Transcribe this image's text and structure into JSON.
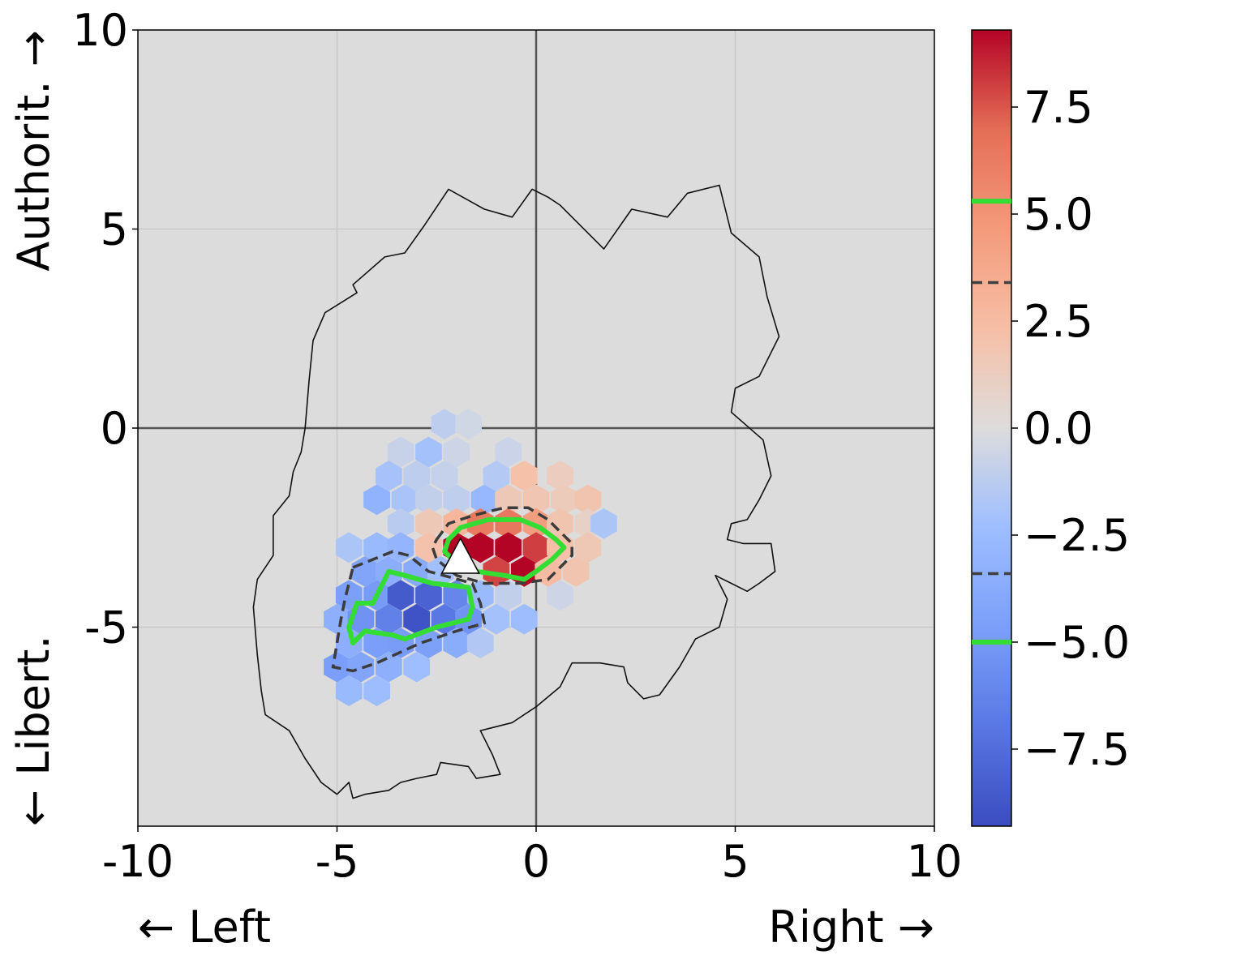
{
  "chart_data": {
    "type": "heatmap",
    "title": "",
    "xlabel_left": "← Left",
    "xlabel_right": "Right →",
    "ylabel_top": "Authorit. →",
    "ylabel_bottom": "← Libert.",
    "xlim": [
      -10,
      10
    ],
    "ylim": [
      -10,
      10
    ],
    "x_ticks": [
      {
        "value": -10,
        "label": "-10"
      },
      {
        "value": -5,
        "label": "-5"
      },
      {
        "value": 0,
        "label": "0"
      },
      {
        "value": 5,
        "label": "5"
      },
      {
        "value": 10,
        "label": "10"
      }
    ],
    "y_ticks": [
      {
        "value": 10,
        "label": "10"
      },
      {
        "value": 5,
        "label": "5"
      },
      {
        "value": 0,
        "label": "0"
      },
      {
        "value": -5,
        "label": "-5"
      }
    ],
    "grid": true,
    "background_color": "#dcdcdc",
    "colormap": "coolwarm",
    "colorbar": {
      "range": [
        -9.3,
        9.3
      ],
      "ticks": [
        {
          "value": 7.5,
          "label": "7.5"
        },
        {
          "value": 5.0,
          "label": "5.0"
        },
        {
          "value": 2.5,
          "label": "2.5"
        },
        {
          "value": 0.0,
          "label": "0.0"
        },
        {
          "value": -2.5,
          "label": "−2.5"
        },
        {
          "value": -5.0,
          "label": "−5.0"
        },
        {
          "value": -7.5,
          "label": "−7.5"
        }
      ],
      "contour_levels": [
        {
          "value": 5.3,
          "style": "solid",
          "color": "#33dd33"
        },
        {
          "value": 3.4,
          "style": "dashed",
          "color": "#404040"
        },
        {
          "value": -3.4,
          "style": "dashed",
          "color": "#404040"
        },
        {
          "value": -5.0,
          "style": "solid",
          "color": "#33dd33"
        }
      ]
    },
    "hex_size": 0.385,
    "hexbins": [
      {
        "x": -2.3,
        "y": 0.1,
        "v": -1.2
      },
      {
        "x": -1.7,
        "y": 0.1,
        "v": -0.5
      },
      {
        "x": -3.4,
        "y": -0.6,
        "v": -0.8
      },
      {
        "x": -2.7,
        "y": -0.6,
        "v": -2.1
      },
      {
        "x": -2.0,
        "y": -0.6,
        "v": -0.6
      },
      {
        "x": -0.7,
        "y": -0.6,
        "v": -0.7
      },
      {
        "x": -3.7,
        "y": -1.2,
        "v": -2.0
      },
      {
        "x": -3.0,
        "y": -1.2,
        "v": -1.2
      },
      {
        "x": -2.3,
        "y": -1.2,
        "v": -0.9
      },
      {
        "x": -1.0,
        "y": -1.2,
        "v": -1.5
      },
      {
        "x": -0.3,
        "y": -1.2,
        "v": 2.2
      },
      {
        "x": 0.6,
        "y": -1.2,
        "v": 1.3
      },
      {
        "x": -4.0,
        "y": -1.8,
        "v": -3.2
      },
      {
        "x": -3.3,
        "y": -1.8,
        "v": -1.9
      },
      {
        "x": -2.7,
        "y": -1.8,
        "v": -1.0
      },
      {
        "x": -2.0,
        "y": -1.8,
        "v": -1.1
      },
      {
        "x": -1.3,
        "y": -1.8,
        "v": -2.8
      },
      {
        "x": -0.7,
        "y": -1.8,
        "v": 1.6
      },
      {
        "x": 0.0,
        "y": -1.8,
        "v": 1.8
      },
      {
        "x": 0.7,
        "y": -1.8,
        "v": 1.4
      },
      {
        "x": 1.3,
        "y": -1.8,
        "v": 1.9
      },
      {
        "x": -3.4,
        "y": -2.4,
        "v": -1.3
      },
      {
        "x": -2.7,
        "y": -2.4,
        "v": 1.6
      },
      {
        "x": -2.0,
        "y": -2.4,
        "v": 2.9
      },
      {
        "x": -1.4,
        "y": -2.4,
        "v": 6.3
      },
      {
        "x": -0.7,
        "y": -2.4,
        "v": 6.5
      },
      {
        "x": 0.0,
        "y": -2.4,
        "v": 4.4
      },
      {
        "x": 0.6,
        "y": -2.4,
        "v": 1.9
      },
      {
        "x": 1.3,
        "y": -2.4,
        "v": 0.9
      },
      {
        "x": 1.7,
        "y": -2.4,
        "v": -1.8
      },
      {
        "x": -4.7,
        "y": -3.0,
        "v": -1.8
      },
      {
        "x": -4.0,
        "y": -3.0,
        "v": -2.6
      },
      {
        "x": -3.4,
        "y": -3.0,
        "v": -3.0
      },
      {
        "x": -2.7,
        "y": -3.0,
        "v": 2.1
      },
      {
        "x": -2.0,
        "y": -3.0,
        "v": 9.3
      },
      {
        "x": -1.4,
        "y": -3.0,
        "v": 9.3
      },
      {
        "x": -0.7,
        "y": -3.0,
        "v": 9.3
      },
      {
        "x": 0.0,
        "y": -3.0,
        "v": 8.0
      },
      {
        "x": 0.6,
        "y": -3.0,
        "v": 2.3
      },
      {
        "x": 1.3,
        "y": -3.0,
        "v": 1.7
      },
      {
        "x": -4.3,
        "y": -3.6,
        "v": -4.2
      },
      {
        "x": -3.7,
        "y": -3.6,
        "v": -3.6
      },
      {
        "x": -3.0,
        "y": -3.6,
        "v": -3.8
      },
      {
        "x": -2.4,
        "y": -3.6,
        "v": -2.2
      },
      {
        "x": -1.0,
        "y": -3.6,
        "v": 7.9
      },
      {
        "x": -0.3,
        "y": -3.6,
        "v": 9.3
      },
      {
        "x": 0.3,
        "y": -3.6,
        "v": 2.5
      },
      {
        "x": 1.0,
        "y": -3.6,
        "v": 1.9
      },
      {
        "x": -4.7,
        "y": -4.2,
        "v": -4.6
      },
      {
        "x": -4.0,
        "y": -4.2,
        "v": -4.9
      },
      {
        "x": -3.4,
        "y": -4.2,
        "v": -8.5
      },
      {
        "x": -2.7,
        "y": -4.2,
        "v": -8.1
      },
      {
        "x": -2.0,
        "y": -4.2,
        "v": -6.1
      },
      {
        "x": -1.4,
        "y": -4.2,
        "v": -2.6
      },
      {
        "x": -0.7,
        "y": -4.2,
        "v": -1.0
      },
      {
        "x": 0.6,
        "y": -4.2,
        "v": -0.6
      },
      {
        "x": -5.0,
        "y": -4.8,
        "v": -3.4
      },
      {
        "x": -4.4,
        "y": -4.8,
        "v": -5.4
      },
      {
        "x": -3.7,
        "y": -4.8,
        "v": -6.4
      },
      {
        "x": -3.0,
        "y": -4.8,
        "v": -8.9
      },
      {
        "x": -2.3,
        "y": -4.8,
        "v": -6.9
      },
      {
        "x": -1.7,
        "y": -4.8,
        "v": -5.3
      },
      {
        "x": -1.0,
        "y": -4.8,
        "v": -2.1
      },
      {
        "x": -0.3,
        "y": -4.8,
        "v": -2.4
      },
      {
        "x": -4.7,
        "y": -5.4,
        "v": -3.5
      },
      {
        "x": -4.0,
        "y": -5.4,
        "v": -4.7
      },
      {
        "x": -3.4,
        "y": -5.4,
        "v": -4.8
      },
      {
        "x": -2.7,
        "y": -5.4,
        "v": -4.5
      },
      {
        "x": -2.0,
        "y": -5.4,
        "v": -3.7
      },
      {
        "x": -1.4,
        "y": -5.4,
        "v": -1.6
      },
      {
        "x": -5.0,
        "y": -6.0,
        "v": -4.7
      },
      {
        "x": -4.4,
        "y": -6.0,
        "v": -4.2
      },
      {
        "x": -3.7,
        "y": -6.0,
        "v": -3.4
      },
      {
        "x": -3.0,
        "y": -6.0,
        "v": -2.3
      },
      {
        "x": -4.7,
        "y": -6.6,
        "v": -2.6
      },
      {
        "x": -4.0,
        "y": -6.6,
        "v": -2.4
      }
    ],
    "outline": [
      [
        -5.8,
        0.0
      ],
      [
        -5.7,
        1.2
      ],
      [
        -5.6,
        2.2
      ],
      [
        -5.3,
        2.9
      ],
      [
        -4.5,
        3.4
      ],
      [
        -4.6,
        3.6
      ],
      [
        -3.8,
        4.3
      ],
      [
        -3.3,
        4.4
      ],
      [
        -2.8,
        5.1
      ],
      [
        -2.2,
        6.0
      ],
      [
        -1.3,
        5.5
      ],
      [
        -0.6,
        5.3
      ],
      [
        -0.1,
        6.0
      ],
      [
        0.3,
        5.8
      ],
      [
        0.6,
        5.6
      ],
      [
        1.7,
        4.5
      ],
      [
        2.4,
        5.5
      ],
      [
        3.3,
        5.3
      ],
      [
        3.8,
        5.9
      ],
      [
        4.6,
        6.1
      ],
      [
        4.9,
        4.9
      ],
      [
        5.6,
        4.3
      ],
      [
        5.8,
        3.3
      ],
      [
        6.1,
        2.3
      ],
      [
        5.6,
        1.3
      ],
      [
        5.0,
        1.0
      ],
      [
        4.9,
        0.4
      ],
      [
        5.7,
        -0.3
      ],
      [
        5.9,
        -1.2
      ],
      [
        5.6,
        -1.8
      ],
      [
        5.3,
        -2.3
      ],
      [
        4.9,
        -2.4
      ],
      [
        4.8,
        -2.8
      ],
      [
        5.2,
        -2.9
      ],
      [
        5.9,
        -2.9
      ],
      [
        6.0,
        -3.6
      ],
      [
        5.6,
        -3.9
      ],
      [
        5.3,
        -4.1
      ],
      [
        4.9,
        -3.9
      ],
      [
        4.5,
        -3.7
      ],
      [
        4.8,
        -4.3
      ],
      [
        4.6,
        -5.0
      ],
      [
        4.0,
        -5.3
      ],
      [
        3.6,
        -6.0
      ],
      [
        3.1,
        -6.7
      ],
      [
        2.7,
        -6.8
      ],
      [
        2.3,
        -6.4
      ],
      [
        2.2,
        -6.0
      ],
      [
        1.6,
        -5.9
      ],
      [
        0.9,
        -5.9
      ],
      [
        0.6,
        -6.5
      ],
      [
        0.0,
        -7.0
      ],
      [
        -0.6,
        -7.4
      ],
      [
        -1.4,
        -7.6
      ],
      [
        -1.1,
        -8.2
      ],
      [
        -0.9,
        -8.7
      ],
      [
        -1.5,
        -8.8
      ],
      [
        -1.7,
        -8.5
      ],
      [
        -2.4,
        -8.4
      ],
      [
        -2.5,
        -8.7
      ],
      [
        -3.0,
        -8.8
      ],
      [
        -3.4,
        -8.9
      ],
      [
        -3.7,
        -9.1
      ],
      [
        -4.3,
        -9.2
      ],
      [
        -4.6,
        -9.3
      ],
      [
        -4.7,
        -8.9
      ],
      [
        -5.0,
        -9.2
      ],
      [
        -5.4,
        -8.9
      ],
      [
        -5.8,
        -8.3
      ],
      [
        -6.2,
        -7.6
      ],
      [
        -6.8,
        -7.2
      ],
      [
        -6.9,
        -6.6
      ],
      [
        -7.0,
        -5.7
      ],
      [
        -7.1,
        -4.5
      ],
      [
        -7.0,
        -3.8
      ],
      [
        -6.6,
        -3.2
      ],
      [
        -6.6,
        -2.2
      ],
      [
        -6.2,
        -1.7
      ],
      [
        -6.1,
        -1.1
      ],
      [
        -5.9,
        -0.6
      ]
    ],
    "red_dashed_contour": [
      [
        -2.5,
        -2.8
      ],
      [
        -2.2,
        -2.4
      ],
      [
        -1.6,
        -2.2
      ],
      [
        -0.8,
        -2.0
      ],
      [
        -0.2,
        -2.0
      ],
      [
        0.3,
        -2.3
      ],
      [
        0.6,
        -2.6
      ],
      [
        0.9,
        -2.9
      ],
      [
        0.9,
        -3.2
      ],
      [
        0.6,
        -3.5
      ],
      [
        0.3,
        -3.8
      ],
      [
        -0.4,
        -3.9
      ],
      [
        -1.3,
        -3.9
      ],
      [
        -2.0,
        -3.7
      ],
      [
        -2.5,
        -3.3
      ],
      [
        -2.6,
        -3.0
      ]
    ],
    "red_solid_contour": [
      [
        -2.2,
        -2.8
      ],
      [
        -1.9,
        -2.5
      ],
      [
        -1.2,
        -2.3
      ],
      [
        -0.4,
        -2.3
      ],
      [
        0.1,
        -2.5
      ],
      [
        0.5,
        -2.8
      ],
      [
        0.7,
        -3.0
      ],
      [
        0.4,
        -3.3
      ],
      [
        0.0,
        -3.6
      ],
      [
        -0.3,
        -3.8
      ],
      [
        -0.8,
        -3.7
      ],
      [
        -1.5,
        -3.6
      ],
      [
        -2.0,
        -3.4
      ],
      [
        -2.3,
        -3.1
      ]
    ],
    "blue_dashed_contour": [
      [
        -4.6,
        -3.5
      ],
      [
        -3.6,
        -3.1
      ],
      [
        -3.2,
        -3.2
      ],
      [
        -2.7,
        -3.6
      ],
      [
        -1.6,
        -3.9
      ],
      [
        -1.4,
        -4.4
      ],
      [
        -1.3,
        -4.9
      ],
      [
        -2.0,
        -5.1
      ],
      [
        -2.9,
        -5.4
      ],
      [
        -4.0,
        -5.9
      ],
      [
        -4.6,
        -6.1
      ],
      [
        -5.1,
        -6.0
      ],
      [
        -5.0,
        -5.4
      ],
      [
        -4.9,
        -4.8
      ],
      [
        -4.8,
        -4.3
      ]
    ],
    "blue_solid_contour": [
      [
        -4.5,
        -4.4
      ],
      [
        -4.1,
        -4.4
      ],
      [
        -3.7,
        -3.6
      ],
      [
        -3.3,
        -3.7
      ],
      [
        -2.6,
        -3.9
      ],
      [
        -1.7,
        -4.0
      ],
      [
        -1.6,
        -4.5
      ],
      [
        -1.7,
        -4.8
      ],
      [
        -2.5,
        -5.0
      ],
      [
        -3.3,
        -5.3
      ],
      [
        -3.6,
        -5.2
      ],
      [
        -4.3,
        -5.1
      ],
      [
        -4.6,
        -5.4
      ],
      [
        -4.7,
        -5.0
      ]
    ],
    "marker": {
      "x": -1.9,
      "y": -3.3,
      "shape": "triangle",
      "color": "#ffffff"
    }
  }
}
